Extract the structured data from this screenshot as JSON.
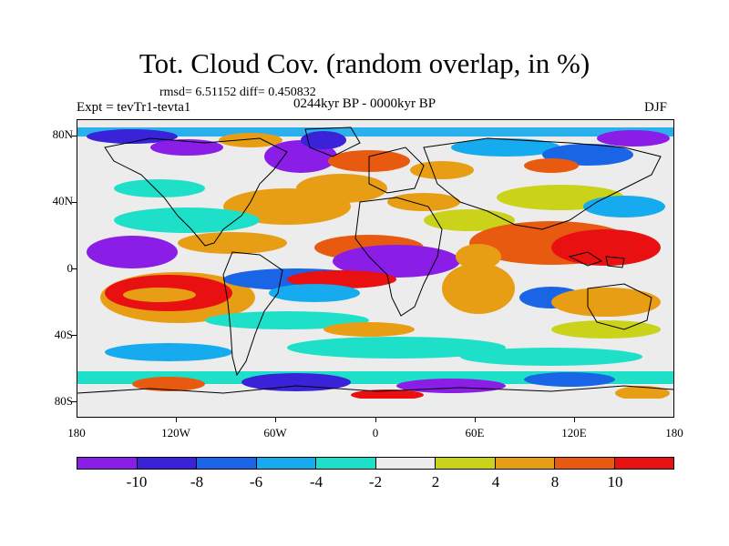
{
  "title": "Tot. Cloud Cov. (random overlap, in %)",
  "stats": "rmsd= 6.51152 diff= 0.450832",
  "experiment": "Expt = tevTr1-tevta1",
  "period": "0244kyr BP - 0000kyr BP",
  "season": "DJF",
  "map": {
    "projection": "cylindrical-equidistant",
    "lon_range": [
      -180,
      180
    ],
    "lat_range": [
      -90,
      90
    ],
    "continent_outlines": true,
    "y_ticks": [
      "80N",
      "40N",
      "0",
      "40S",
      "80S"
    ],
    "x_ticks": [
      "180",
      "120W",
      "60W",
      "0",
      "60E",
      "120E",
      "180"
    ]
  },
  "colorbar": {
    "labels": [
      "-10",
      "-8",
      "-6",
      "-4",
      "-2",
      "2",
      "4",
      "8",
      "10"
    ],
    "colors": [
      "#8a1ee6",
      "#3a22d8",
      "#1a64e6",
      "#16aaee",
      "#1ee0c8",
      "#ececec",
      "#cad21a",
      "#e89e14",
      "#e85a10",
      "#e81010"
    ]
  }
}
